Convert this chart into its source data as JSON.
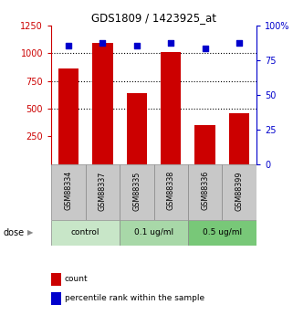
{
  "title": "GDS1809 / 1423925_at",
  "samples": [
    "GSM88334",
    "GSM88337",
    "GSM88335",
    "GSM88338",
    "GSM88336",
    "GSM88399"
  ],
  "bar_values": [
    860,
    1090,
    640,
    1010,
    350,
    455
  ],
  "percentile_values": [
    85,
    87,
    85,
    87,
    83,
    87
  ],
  "bar_color": "#cc0000",
  "dot_color": "#0000cc",
  "ylim_left": [
    0,
    1250
  ],
  "ylim_right": [
    0,
    100
  ],
  "yticks_left": [
    250,
    500,
    750,
    1000,
    1250
  ],
  "yticks_right": [
    0,
    25,
    50,
    75,
    100
  ],
  "groups": [
    {
      "label": "control",
      "indices": [
        0,
        1
      ],
      "color": "#c8e6c8"
    },
    {
      "label": "0.1 ug/ml",
      "indices": [
        2,
        3
      ],
      "color": "#a8d8a8"
    },
    {
      "label": "0.5 ug/ml",
      "indices": [
        4,
        5
      ],
      "color": "#78c878"
    }
  ],
  "dose_label": "dose",
  "legend_count": "count",
  "legend_percentile": "percentile rank within the sample",
  "sample_box_color": "#c8c8c8",
  "title_color": "#000000",
  "left_axis_color": "#cc0000",
  "right_axis_color": "#0000cc"
}
